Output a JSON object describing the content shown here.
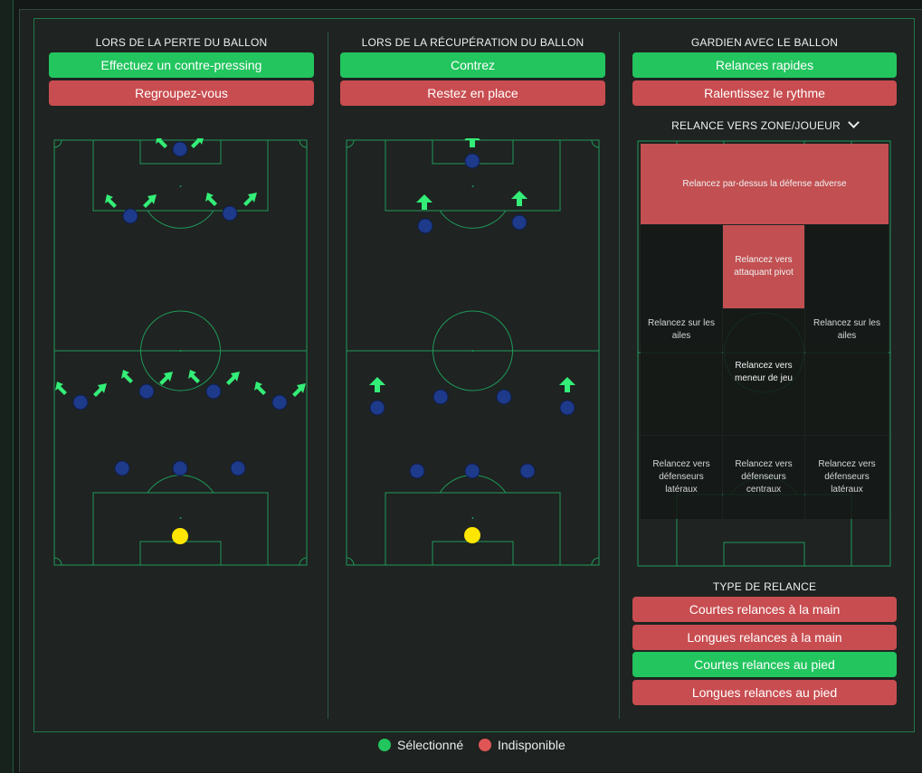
{
  "colors": {
    "selected": "#22c55e",
    "unavailable": "#c84d50",
    "pitch_line": "#1f9a5a",
    "player": "#1e3a8a",
    "goalkeeper": "#ffe600",
    "arrow": "#33ee77"
  },
  "columns": {
    "lost_ball": {
      "title": "LORS DE LA PERTE DU BALLON",
      "options": [
        "Effectuez un contre-pressing",
        "Regroupez-vous"
      ]
    },
    "recovery": {
      "title": "LORS DE LA RÉCUPÉRATION DU BALLON",
      "options": [
        "Contrez",
        "Restez en place"
      ]
    },
    "goalkeeper": {
      "title": "GARDIEN AVEC LE BALLON",
      "options": [
        "Relances rapides",
        "Ralentissez le rythme"
      ],
      "distribution_dropdown": "RELANCE VERS ZONE/JOUEUR",
      "zones": {
        "over_defense": "Relancez par-dessus la défense adverse",
        "target_man": "Relancez vers attaquant pivot",
        "wings_left": "Relancez sur les ailes",
        "wings_right": "Relancez sur les ailes",
        "playmaker": "Relancez vers meneur de jeu",
        "fullbacks_left": "Relancez vers défenseurs latéraux",
        "center_backs": "Relancez vers défenseurs centraux",
        "fullbacks_right": "Relancez vers défenseurs latéraux"
      },
      "distribution_type_title": "TYPE DE RELANCE",
      "distribution_types": [
        "Courtes relances à la main",
        "Longues relances à la main",
        "Courtes relances au pied",
        "Longues relances au pied"
      ]
    }
  },
  "legend": {
    "selected": "Sélectionné",
    "unavailable": "Indisponible"
  }
}
